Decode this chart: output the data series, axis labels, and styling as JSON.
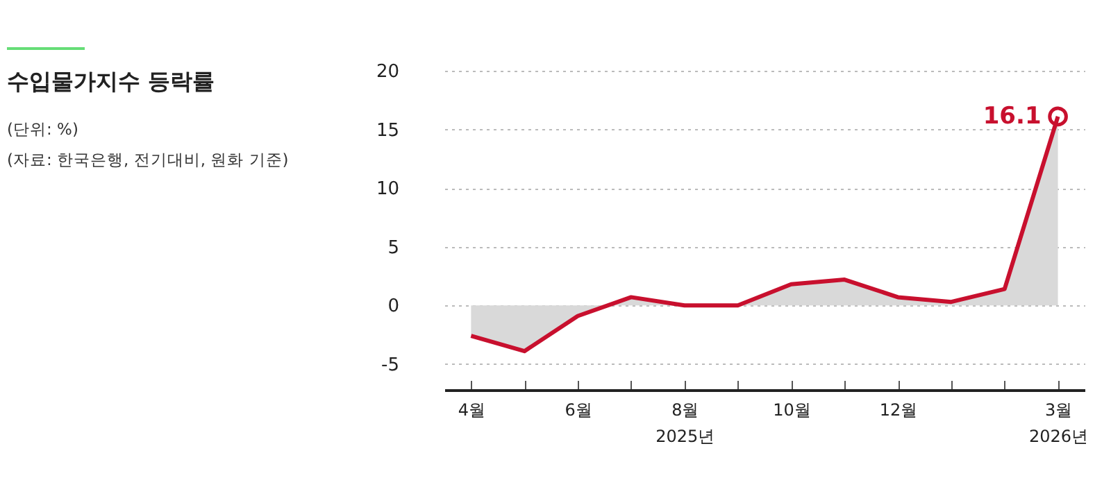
{
  "chart_data": {
    "type": "area",
    "title": "수입물가지수 등락률",
    "annotations": [
      "(단위: %)",
      "(자료: 한국은행, 전기대비, 원화 기준)"
    ],
    "categories": [
      "4월",
      null,
      "6월",
      null,
      "8월 2025년",
      null,
      "10월",
      null,
      "12월",
      null,
      null,
      "3월 2026년"
    ],
    "series": [
      {
        "color": "#c8102e",
        "values": [
          -2.6,
          -3.9,
          -0.9,
          0.7,
          0.0,
          0.0,
          1.8,
          2.2,
          0.7,
          0.3,
          1.4,
          16.1
        ],
        "value_labels": [
          null,
          null,
          null,
          null,
          null,
          null,
          null,
          null,
          null,
          null,
          null,
          "16.1"
        ]
      }
    ],
    "ylim": [
      -7.2,
      20
    ],
    "yticks": [
      -5,
      0,
      5,
      10,
      15,
      20
    ],
    "grid": "y"
  }
}
